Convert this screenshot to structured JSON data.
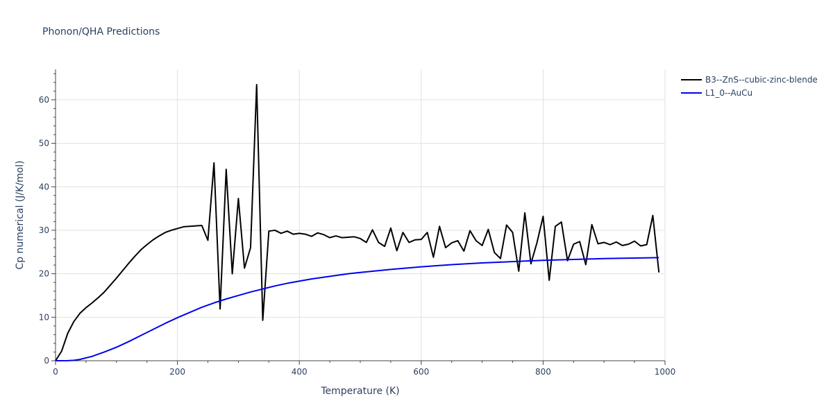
{
  "chart_data": {
    "type": "line",
    "title": "Phonon/QHA Predictions",
    "xlabel": "Temperature (K)",
    "ylabel": "Cp numerical (J/K/mol)",
    "xlim": [
      0,
      1000
    ],
    "ylim": [
      0,
      67
    ],
    "xticks": [
      0,
      200,
      400,
      600,
      800,
      1000
    ],
    "yticks": [
      0,
      10,
      20,
      30,
      40,
      50,
      60
    ],
    "grid": true,
    "legend_position": "top-right",
    "series": [
      {
        "name": "B3--ZnS--cubic-zinc-blende",
        "color": "#000000",
        "x": [
          0,
          10,
          20,
          30,
          40,
          50,
          60,
          70,
          80,
          90,
          100,
          110,
          120,
          130,
          140,
          150,
          160,
          170,
          180,
          190,
          200,
          210,
          220,
          230,
          240,
          250,
          260,
          270,
          280,
          290,
          300,
          310,
          320,
          330,
          340,
          350,
          360,
          370,
          380,
          390,
          400,
          410,
          420,
          430,
          440,
          450,
          460,
          470,
          480,
          490,
          500,
          510,
          520,
          530,
          540,
          550,
          560,
          570,
          580,
          590,
          600,
          610,
          620,
          630,
          640,
          650,
          660,
          670,
          680,
          690,
          700,
          710,
          720,
          730,
          740,
          750,
          760,
          770,
          780,
          790,
          800,
          810,
          820,
          830,
          840,
          850,
          860,
          870,
          880,
          890,
          900,
          910,
          920,
          930,
          940,
          950,
          960,
          970,
          980,
          990
        ],
        "y": [
          0,
          2.2,
          6.3,
          9.0,
          10.9,
          12.2,
          13.3,
          14.5,
          15.8,
          17.4,
          19.0,
          20.7,
          22.4,
          24.0,
          25.5,
          26.7,
          27.8,
          28.7,
          29.5,
          30.0,
          30.4,
          30.8,
          30.9,
          31.0,
          31.1,
          27.7,
          45.5,
          11.9,
          44.0,
          20.0,
          37.3,
          21.3,
          26.0,
          63.5,
          9.3,
          29.8,
          30.0,
          29.3,
          29.8,
          29.1,
          29.3,
          29.1,
          28.6,
          29.4,
          29.0,
          28.3,
          28.7,
          28.3,
          28.4,
          28.5,
          28.1,
          27.2,
          30.1,
          27.2,
          26.3,
          30.5,
          25.3,
          29.5,
          27.2,
          27.8,
          27.9,
          29.5,
          23.8,
          30.9,
          26.0,
          27.1,
          27.6,
          25.2,
          29.9,
          27.6,
          26.5,
          30.2,
          24.9,
          23.5,
          31.2,
          29.5,
          20.6,
          34.0,
          22.3,
          27.2,
          33.2,
          18.5,
          30.9,
          31.9,
          23.0,
          26.8,
          27.4,
          22.1,
          31.3,
          26.9,
          27.2,
          26.7,
          27.3,
          26.5,
          26.8,
          27.5,
          26.4,
          26.7,
          33.4,
          20.3
        ]
      },
      {
        "name": "L1_0--AuCu",
        "color": "#0000ee",
        "x": [
          0,
          20,
          30,
          40,
          60,
          80,
          100,
          120,
          140,
          160,
          180,
          200,
          220,
          240,
          260,
          280,
          300,
          320,
          340,
          360,
          380,
          400,
          420,
          440,
          460,
          480,
          500,
          550,
          600,
          650,
          700,
          750,
          800,
          850,
          900,
          950,
          990
        ],
        "y": [
          0,
          0.02,
          0.1,
          0.3,
          1.0,
          2.0,
          3.1,
          4.4,
          5.8,
          7.2,
          8.6,
          9.9,
          11.1,
          12.3,
          13.3,
          14.2,
          15.0,
          15.8,
          16.5,
          17.2,
          17.8,
          18.3,
          18.8,
          19.2,
          19.6,
          20.0,
          20.3,
          21.0,
          21.6,
          22.1,
          22.5,
          22.8,
          23.1,
          23.3,
          23.5,
          23.6,
          23.7
        ]
      }
    ]
  }
}
